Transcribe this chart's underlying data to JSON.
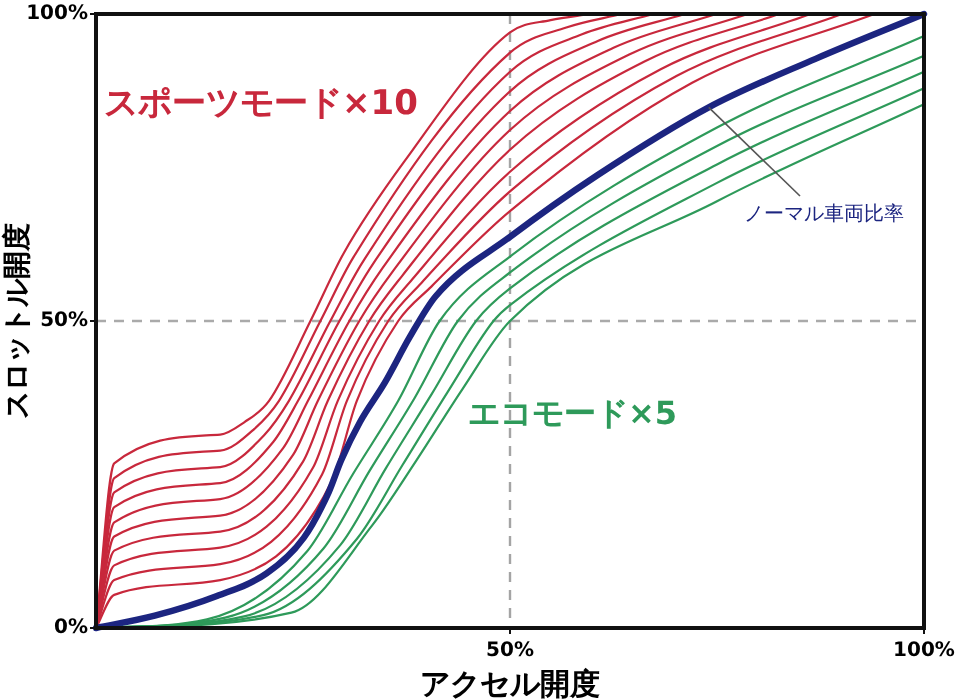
{
  "chart_data": {
    "type": "line",
    "xlabel": "アクセル開度",
    "ylabel": "スロットル開度",
    "xlim": [
      0,
      100
    ],
    "ylim": [
      0,
      100
    ],
    "xticks": [
      {
        "value": 50,
        "label": "50%"
      },
      {
        "value": 100,
        "label": "100%"
      }
    ],
    "yticks": [
      {
        "value": 0,
        "label": "0%"
      },
      {
        "value": 50,
        "label": "50%"
      },
      {
        "value": 100,
        "label": "100%"
      }
    ],
    "ref_lines": [
      {
        "axis": "x",
        "value": 50,
        "line_style": "dashed",
        "color": "#a4a4a4"
      },
      {
        "axis": "y",
        "value": 50,
        "line_style": "dashed",
        "color": "#aaaaaa"
      }
    ],
    "line_style": "solid",
    "series": [
      {
        "name": "スポーツモード×10",
        "color": "#c8283c",
        "x": [
          0,
          2.2,
          15,
          17.9,
          20.9,
          25.9,
          29.9,
          37.2,
          50,
          54.9,
          59.7
        ],
        "values": [
          0,
          26.8,
          31.5,
          33.5,
          37,
          50,
          61,
          75.9,
          97,
          99,
          100
        ]
      },
      {
        "color": "#c8283c",
        "x": [
          0,
          2.2,
          15,
          19.1,
          22.1,
          27.1,
          31.1,
          50,
          56.8,
          63.5
        ],
        "values": [
          0,
          24.4,
          28.9,
          32.4,
          37,
          50,
          60.4,
          93.7,
          97.8,
          100
        ]
      },
      {
        "color": "#c8283c",
        "x": [
          0,
          2.2,
          15,
          20.3,
          23.3,
          28.3,
          32.3,
          50,
          58.7,
          67.3
        ],
        "values": [
          0,
          22.1,
          26.2,
          31.4,
          37,
          50,
          59.8,
          90.6,
          96.7,
          100
        ]
      },
      {
        "color": "#c8283c",
        "x": [
          0,
          2.2,
          15,
          21.4,
          24.4,
          29.4,
          33.4,
          50,
          60.6,
          71.1
        ],
        "values": [
          0,
          19.7,
          23.6,
          30.3,
          37,
          50,
          59.2,
          87.4,
          95.6,
          100
        ]
      },
      {
        "color": "#c8283c",
        "x": [
          0,
          2.2,
          15,
          22.6,
          25.6,
          30.6,
          34.6,
          50,
          62.5,
          74.9
        ],
        "values": [
          0,
          17.2,
          21.0,
          29.3,
          37,
          50,
          58.6,
          84.2,
          94.5,
          100
        ]
      },
      {
        "color": "#c8283c",
        "x": [
          0,
          2.2,
          15,
          23.8,
          26.8,
          31.8,
          35.8,
          50,
          64.4,
          78.7
        ],
        "values": [
          0,
          14.9,
          18.3,
          28.2,
          37,
          50,
          58,
          81.1,
          93.4,
          100
        ]
      },
      {
        "color": "#c8283c",
        "x": [
          0,
          2.2,
          15,
          25.0,
          28.0,
          33.0,
          37.0,
          50,
          66.3,
          82.5
        ],
        "values": [
          0,
          12.6,
          15.7,
          27.1,
          37,
          50,
          57.4,
          77.9,
          92.3,
          100
        ]
      },
      {
        "color": "#c8283c",
        "x": [
          0,
          2.2,
          15,
          26.2,
          29.2,
          34.2,
          38.2,
          50,
          68.2,
          86.3
        ],
        "values": [
          0,
          10.2,
          13.1,
          26.1,
          37,
          50,
          56.8,
          74.3,
          91,
          100
        ]
      },
      {
        "color": "#c8283c",
        "x": [
          0,
          2.2,
          15,
          27.3,
          30.3,
          35.3,
          39.3,
          50,
          70.1,
          90.1
        ],
        "values": [
          0,
          7.8,
          10.4,
          25.0,
          37,
          50,
          56.2,
          71.1,
          89.9,
          100
        ]
      },
      {
        "color": "#c8283c",
        "x": [
          0,
          2.2,
          15,
          28.5,
          31.5,
          36.5,
          40.5,
          50,
          72,
          94
        ],
        "values": [
          0,
          5.4,
          7.8,
          24.0,
          37,
          50,
          55.6,
          67.9,
          88.8,
          100
        ]
      },
      {
        "name": "ノーマル車両比率",
        "color": "#1c2580",
        "x": [
          0,
          7.1,
          14.6,
          20.6,
          25.1,
          28.1,
          29.6,
          31.9,
          34.9,
          37.9,
          41,
          50,
          60.5,
          74,
          86.9,
          100
        ],
        "values": [
          0,
          2.0,
          5.2,
          8.9,
          14.7,
          22.1,
          27.3,
          33.6,
          40.0,
          47.4,
          54,
          63.7,
          73.7,
          84.8,
          92.7,
          100
        ]
      },
      {
        "name": "エコモード×5",
        "color": "#2e9a5a",
        "x": [
          0,
          13.4,
          25.5,
          31,
          36.5,
          41.5,
          50,
          75,
          100
        ],
        "values": [
          0,
          1.4,
          12.5,
          25,
          37,
          50,
          60.5,
          81.5,
          96.4
        ]
      },
      {
        "color": "#2e9a5a",
        "x": [
          0,
          15.6,
          27.5,
          33,
          38.5,
          43.7,
          50,
          75,
          100
        ],
        "values": [
          0,
          1.7,
          13,
          25.5,
          37.5,
          50,
          57.9,
          78.5,
          93.2
        ]
      },
      {
        "color": "#2e9a5a",
        "x": [
          0,
          17.9,
          29.5,
          35,
          40.5,
          45.9,
          50,
          75,
          100
        ],
        "values": [
          0,
          1.9,
          13.5,
          26,
          38,
          50,
          55.3,
          75.5,
          90.6
        ]
      },
      {
        "color": "#2e9a5a",
        "x": [
          0,
          20.2,
          31.5,
          37,
          42.5,
          48,
          50,
          75,
          100
        ],
        "values": [
          0,
          2.1,
          14.5,
          26.5,
          38.5,
          50,
          52.6,
          72.5,
          87.9
        ]
      },
      {
        "color": "#2e9a5a",
        "x": [
          0,
          23.6,
          33.4,
          38.7,
          44.3,
          50,
          75,
          100
        ],
        "values": [
          0,
          2.5,
          16.8,
          27.3,
          39,
          50,
          69.5,
          85.3
        ]
      }
    ]
  }
}
